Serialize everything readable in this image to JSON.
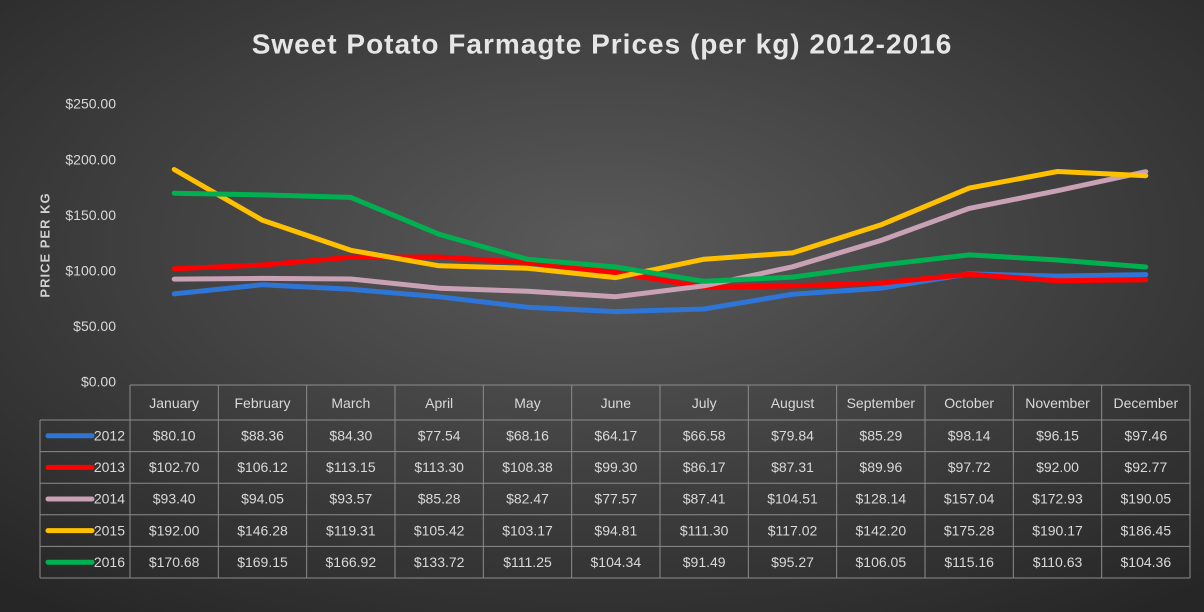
{
  "chart_data": {
    "type": "line",
    "title": "Sweet Potato Farmagte Prices (per kg) 2012-2016",
    "y_axis_label": "PRICE PER KG",
    "categories": [
      "January",
      "February",
      "March",
      "April",
      "May",
      "June",
      "July",
      "August",
      "September",
      "October",
      "November",
      "December"
    ],
    "ylim": [
      0,
      250
    ],
    "yticks": [
      {
        "value": 0,
        "label": "$0.00"
      },
      {
        "value": 50,
        "label": "$50.00"
      },
      {
        "value": 100,
        "label": "$100.00"
      },
      {
        "value": 150,
        "label": "$150.00"
      },
      {
        "value": 200,
        "label": "$200.00"
      },
      {
        "value": 250,
        "label": "$250.00"
      }
    ],
    "grid": false,
    "series": [
      {
        "name": "2012",
        "color": "#2e75d6",
        "values": [
          80.1,
          88.36,
          84.3,
          77.54,
          68.16,
          64.17,
          66.58,
          79.84,
          85.29,
          98.14,
          96.15,
          97.46
        ],
        "value_labels": [
          "$80.10",
          "$88.36",
          "$84.30",
          "$77.54",
          "$68.16",
          "$64.17",
          "$66.58",
          "$79.84",
          "$85.29",
          "$98.14",
          "$96.15",
          "$97.46"
        ]
      },
      {
        "name": "2013",
        "color": "#ff0000",
        "values": [
          102.7,
          106.12,
          113.15,
          113.3,
          108.38,
          99.3,
          86.17,
          87.31,
          89.96,
          97.72,
          92.0,
          92.77
        ],
        "value_labels": [
          "$102.70",
          "$106.12",
          "$113.15",
          "$113.30",
          "$108.38",
          "$99.30",
          "$86.17",
          "$87.31",
          "$89.96",
          "$97.72",
          "$92.00",
          "$92.77"
        ]
      },
      {
        "name": "2014",
        "color": "#c9a1b5",
        "values": [
          93.4,
          94.05,
          93.57,
          85.28,
          82.47,
          77.57,
          87.41,
          104.51,
          128.14,
          157.04,
          172.93,
          190.05
        ],
        "value_labels": [
          "$93.40",
          "$94.05",
          "$93.57",
          "$85.28",
          "$82.47",
          "$77.57",
          "$87.41",
          "$104.51",
          "$128.14",
          "$157.04",
          "$172.93",
          "$190.05"
        ]
      },
      {
        "name": "2015",
        "color": "#ffc000",
        "values": [
          192.0,
          146.28,
          119.31,
          105.42,
          103.17,
          94.81,
          111.3,
          117.02,
          142.2,
          175.28,
          190.17,
          186.45
        ],
        "value_labels": [
          "$192.00",
          "$146.28",
          "$119.31",
          "$105.42",
          "$103.17",
          "$94.81",
          "$111.30",
          "$117.02",
          "$142.20",
          "$175.28",
          "$190.17",
          "$186.45"
        ]
      },
      {
        "name": "2016",
        "color": "#00b050",
        "values": [
          170.68,
          169.15,
          166.92,
          133.72,
          111.25,
          104.34,
          91.49,
          95.27,
          106.05,
          115.16,
          110.63,
          104.36
        ],
        "value_labels": [
          "$170.68",
          "$169.15",
          "$166.92",
          "$133.72",
          "$111.25",
          "$104.34",
          "$91.49",
          "$95.27",
          "$106.05",
          "$115.16",
          "$110.63",
          "$104.36"
        ]
      }
    ]
  }
}
